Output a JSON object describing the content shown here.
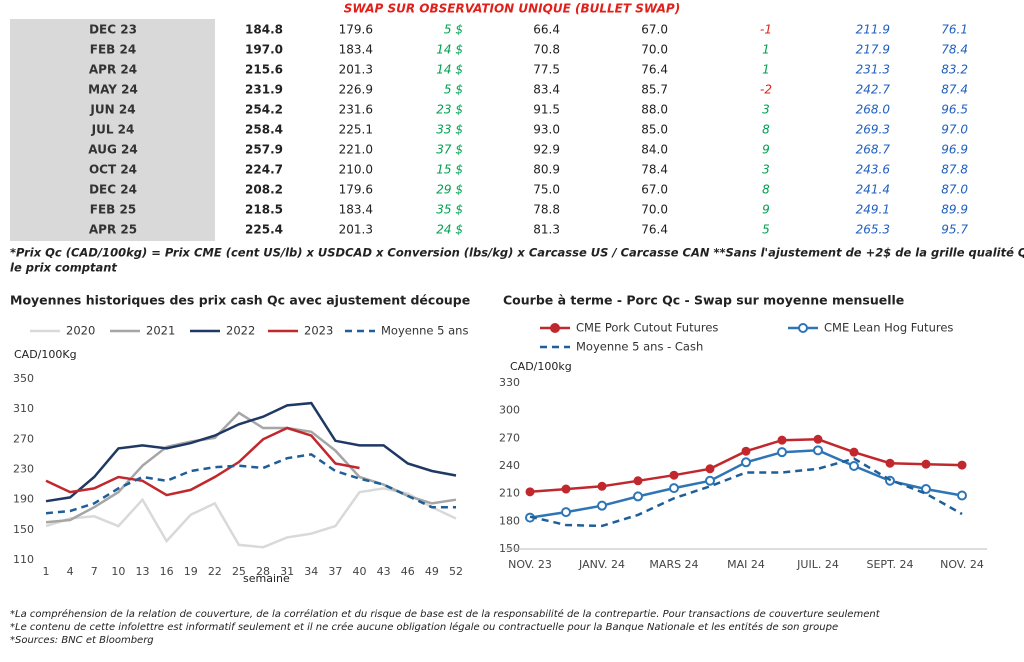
{
  "header": {
    "title": "SWAP SUR OBSERVATION UNIQUE (BULLET SWAP)"
  },
  "table": {
    "rows": [
      [
        "DEC 23",
        "184.8",
        "179.6",
        "5 $",
        "66.4",
        "67.0",
        "-1",
        "211.9",
        "76.1"
      ],
      [
        "FEB 24",
        "197.0",
        "183.4",
        "14 $",
        "70.8",
        "70.0",
        "1",
        "217.9",
        "78.4"
      ],
      [
        "APR 24",
        "215.6",
        "201.3",
        "14 $",
        "77.5",
        "76.4",
        "1",
        "231.3",
        "83.2"
      ],
      [
        "MAY 24",
        "231.9",
        "226.9",
        "5 $",
        "83.4",
        "85.7",
        "-2",
        "242.7",
        "87.4"
      ],
      [
        "JUN 24",
        "254.2",
        "231.6",
        "23 $",
        "91.5",
        "88.0",
        "3",
        "268.0",
        "96.5"
      ],
      [
        "JUL 24",
        "258.4",
        "225.1",
        "33 $",
        "93.0",
        "85.0",
        "8",
        "269.3",
        "97.0"
      ],
      [
        "AUG 24",
        "257.9",
        "221.0",
        "37 $",
        "92.9",
        "84.0",
        "9",
        "268.7",
        "96.9"
      ],
      [
        "OCT 24",
        "224.7",
        "210.0",
        "15 $",
        "80.9",
        "78.4",
        "3",
        "243.6",
        "87.8"
      ],
      [
        "DEC 24",
        "208.2",
        "179.6",
        "29 $",
        "75.0",
        "67.0",
        "8",
        "241.4",
        "87.0"
      ],
      [
        "FEB 25",
        "218.5",
        "183.4",
        "35 $",
        "78.8",
        "70.0",
        "9",
        "249.1",
        "89.9"
      ],
      [
        "APR 25",
        "225.4",
        "201.3",
        "24 $",
        "81.3",
        "76.4",
        "5",
        "265.3",
        "95.7"
      ]
    ]
  },
  "note": [
    "*Prix Qc (CAD/100kg) = Prix CME (cent US/lb) x USDCAD x Conversion (lbs/kg) x Carcasse US / Carcasse CAN **Sans l'ajustement de +2$ de la grille qualité Québec pour",
    "le prix comptant"
  ],
  "chart_data": [
    {
      "type": "line",
      "title": "Moyennes historiques des prix cash Qc avec ajustement découpe",
      "x_label": "semaine",
      "y_label": "CAD/100Kg",
      "x": [
        1,
        4,
        7,
        10,
        13,
        16,
        19,
        22,
        25,
        28,
        31,
        34,
        37,
        40,
        43,
        46,
        49,
        52
      ],
      "xlim": [
        1,
        52
      ],
      "xticks": [
        1,
        4,
        7,
        10,
        13,
        16,
        19,
        22,
        25,
        28,
        31,
        34,
        37,
        40,
        43,
        46,
        49,
        52
      ],
      "ylim": [
        110,
        350
      ],
      "yticks": [
        110,
        150,
        190,
        230,
        270,
        310,
        350
      ],
      "series": [
        {
          "name": "2020",
          "color": "#d9d9d9",
          "values": [
            155,
            165,
            168,
            155,
            190,
            135,
            170,
            185,
            130,
            127,
            140,
            145,
            155,
            200,
            205,
            198,
            180,
            165
          ]
        },
        {
          "name": "2021",
          "color": "#a6a6a6",
          "values": [
            160,
            163,
            180,
            200,
            235,
            260,
            267,
            272,
            305,
            285,
            285,
            280,
            255,
            220,
            210,
            195,
            185,
            190
          ]
        },
        {
          "name": "2022",
          "color": "#1f3864",
          "values": [
            188,
            193,
            220,
            258,
            262,
            258,
            265,
            275,
            290,
            300,
            315,
            318,
            268,
            262,
            262,
            238,
            228,
            222
          ]
        },
        {
          "name": "2023",
          "color": "#c0282d",
          "values": [
            215,
            200,
            205,
            220,
            215,
            196,
            203,
            220,
            240,
            270,
            285,
            275,
            238,
            232,
            null,
            null,
            null,
            null
          ]
        },
        {
          "name": "Moyenne 5 ans",
          "color": "#1f5f99",
          "dash": true,
          "values": [
            172,
            175,
            185,
            205,
            220,
            215,
            228,
            233,
            235,
            232,
            245,
            250,
            228,
            218,
            210,
            195,
            180,
            180
          ]
        }
      ]
    },
    {
      "type": "line",
      "title": "Courbe à terme - Porc Qc - Swap sur moyenne mensuelle",
      "y_label": "CAD/100kg",
      "categories": [
        "NOV. 23",
        null,
        "JANV. 24",
        null,
        "MARS 24",
        null,
        "MAI 24",
        null,
        "JUIL. 24",
        null,
        "SEPT. 24",
        null,
        "NOV. 24"
      ],
      "ylim": [
        150,
        330
      ],
      "yticks": [
        150,
        180,
        210,
        240,
        270,
        300,
        330
      ],
      "series": [
        {
          "name": "CME Pork Cutout Futures",
          "color": "#c0282d",
          "marker": "filled",
          "values": [
            212,
            215,
            218,
            224,
            230,
            237,
            256,
            268,
            269,
            255,
            243,
            242,
            241
          ]
        },
        {
          "name": "CME Lean Hog Futures",
          "color": "#2e75b6",
          "marker": "open",
          "values": [
            184,
            190,
            197,
            207,
            216,
            224,
            244,
            255,
            257,
            240,
            224,
            215,
            208
          ]
        },
        {
          "name": "Moyenne 5 ans - Cash",
          "color": "#1f5f99",
          "dash": true,
          "values": [
            185,
            176,
            175,
            187,
            205,
            218,
            233,
            233,
            237,
            248,
            225,
            210,
            188
          ]
        }
      ]
    }
  ],
  "footer": [
    "*La compréhension de la relation de couverture, de la corrélation et du risque de base est de la responsabilité de la contrepartie. Pour transactions de couverture seulement",
    "*Le contenu de cette infolettre est informatif seulement et il ne crée aucune obligation légale ou contractuelle pour la Banque Nationale et les entités de son groupe",
    "*Sources: BNC et Bloomberg"
  ]
}
